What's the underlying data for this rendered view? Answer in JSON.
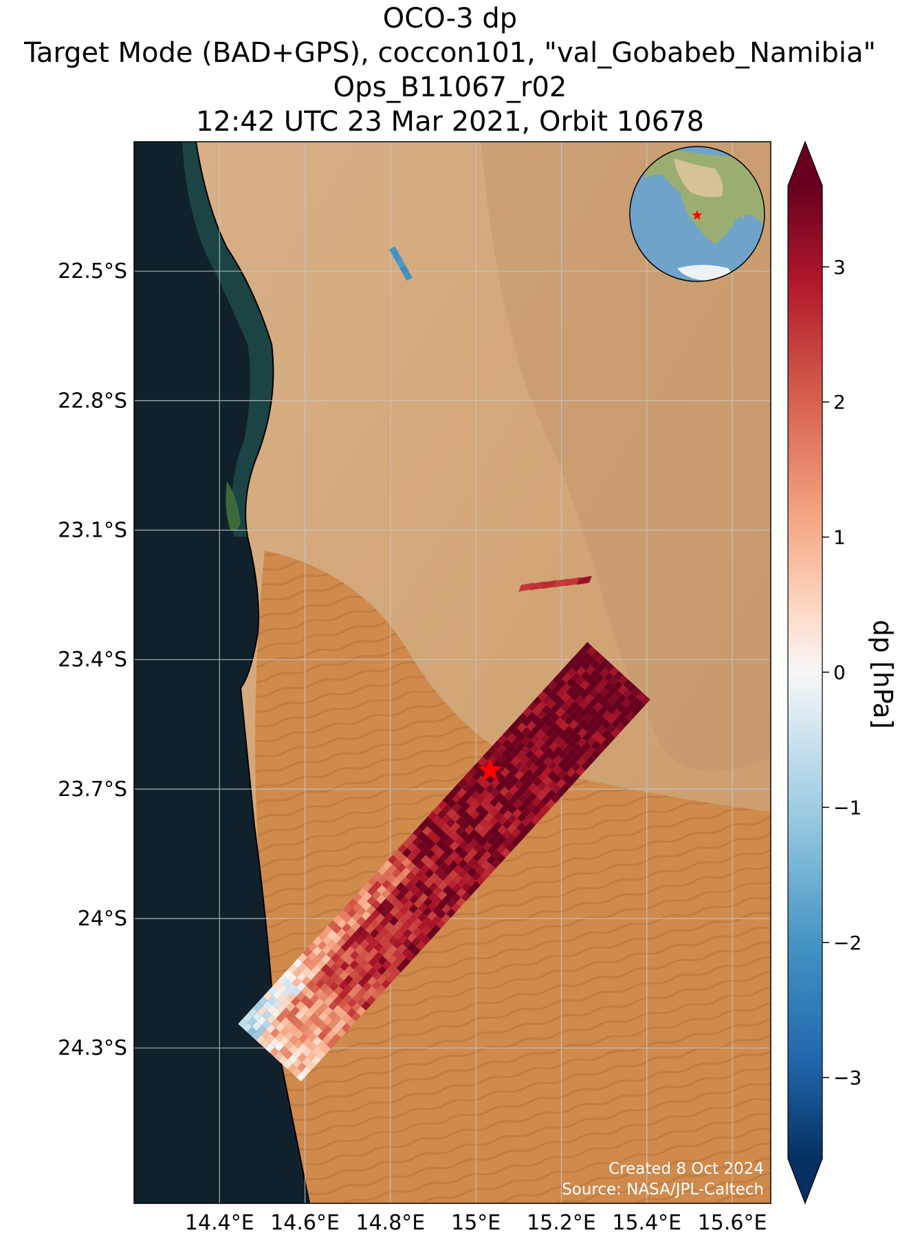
{
  "title": {
    "line1": "OCO-3 dp",
    "line2": "Target Mode (BAD+GPS), coccon101, \"val_Gobabeb_Namibia\"",
    "line3": "Ops_B11067_r02",
    "line4": "12:42 UTC 23 Mar 2021, Orbit 10678"
  },
  "map": {
    "lat_ticks": [
      "22.5°S",
      "22.8°S",
      "23.1°S",
      "23.4°S",
      "23.7°S",
      "24°S",
      "24.3°S"
    ],
    "lon_ticks": [
      "14.4°E",
      "14.6°E",
      "14.8°E",
      "15°E",
      "15.2°E",
      "15.4°E",
      "15.6°E"
    ],
    "lat_values": [
      -22.5,
      -22.8,
      -23.1,
      -23.4,
      -23.7,
      -24.0,
      -24.3
    ],
    "lon_values": [
      14.4,
      14.6,
      14.8,
      15.0,
      15.2,
      15.4,
      15.6
    ],
    "target_name": "val_Gobabeb_Namibia",
    "target_marker": "red-star-icon",
    "ocean_color": "#10212c",
    "desert_color": "#d7a673",
    "dune_color": "#cc8244"
  },
  "colorbar": {
    "label": "dp [hPa]",
    "ticks": [
      "3",
      "2",
      "1",
      "0",
      "−1",
      "−2",
      "−3"
    ],
    "tick_values": [
      3,
      2,
      1,
      0,
      -1,
      -2,
      -3
    ],
    "range": [
      -3.6,
      3.6
    ],
    "colormap": "RdBu_r",
    "extend": "both"
  },
  "credits": {
    "created": "Created 8 Oct 2024",
    "source": "Source: NASA/JPL-Caltech"
  },
  "inset_globe": {
    "marker": "red-star-icon"
  }
}
